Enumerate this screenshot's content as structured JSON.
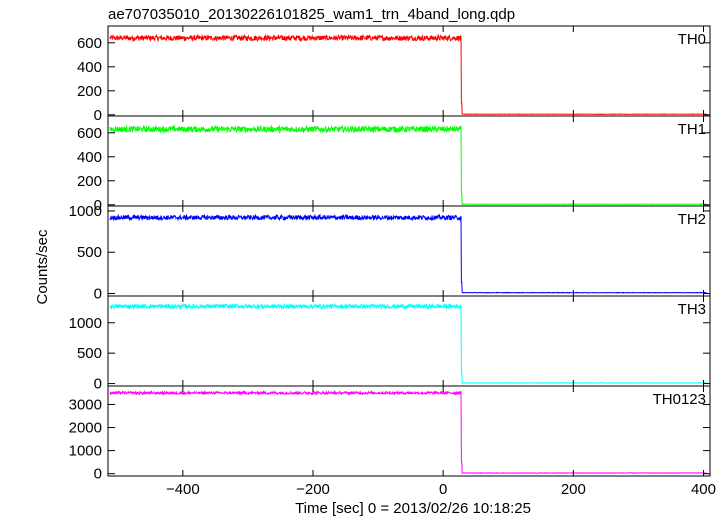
{
  "title": "ae707035010_20130226101825_wam1_trn_4band_long.qdp",
  "ylabel": "Counts/sec",
  "xlabel": "Time [sec] 0 = 2013/02/26 10:18:25",
  "chart_data": {
    "type": "line",
    "title": "ae707035010_20130226101825_wam1_trn_4band_long.qdp",
    "xlabel": "Time [sec] 0 = 2013/02/26 10:18:25",
    "ylabel": "Counts/sec",
    "xlim": [
      -515,
      410
    ],
    "x_ticks": [
      -400,
      -200,
      0,
      200,
      400
    ],
    "x_tick_labels": [
      "−400",
      "−200",
      "0",
      "200",
      "400"
    ],
    "drop_time": 28,
    "grid": false,
    "panels": [
      {
        "name": "TH0",
        "color": "#ff0000",
        "ylim": [
          -10,
          740
        ],
        "yticks": [
          0,
          200,
          400,
          600
        ],
        "pre_level": 640,
        "noise": 22,
        "post_level": 5
      },
      {
        "name": "TH1",
        "color": "#00ff00",
        "ylim": [
          -10,
          740
        ],
        "yticks": [
          0,
          200,
          400,
          600
        ],
        "pre_level": 630,
        "noise": 25,
        "post_level": 5
      },
      {
        "name": "TH2",
        "color": "#0000ff",
        "ylim": [
          -30,
          1060
        ],
        "yticks": [
          0,
          500,
          1000
        ],
        "pre_level": 920,
        "noise": 28,
        "post_level": 10
      },
      {
        "name": "TH3",
        "color": "#00ffff",
        "ylim": [
          -40,
          1440
        ],
        "yticks": [
          0,
          500,
          1000
        ],
        "pre_level": 1270,
        "noise": 35,
        "post_level": 10
      },
      {
        "name": "TH0123",
        "color": "#ff00ff",
        "ylim": [
          -100,
          3800
        ],
        "yticks": [
          0,
          1000,
          2000,
          3000
        ],
        "pre_level": 3500,
        "noise": 55,
        "post_level": 30
      }
    ]
  }
}
